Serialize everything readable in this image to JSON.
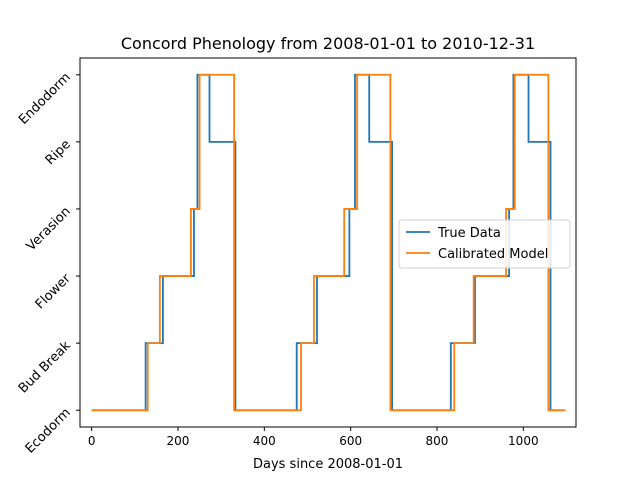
{
  "chart_data": {
    "type": "line",
    "title": "Concord Phenology from 2008-01-01 to 2010-12-31",
    "xlabel": "Days since 2008-01-01",
    "ylabel": "",
    "xlim": [
      -27,
      1122
    ],
    "ylim": [
      -0.25,
      5.25
    ],
    "xticks": [
      0,
      200,
      400,
      600,
      800,
      1000
    ],
    "yticks": [
      0,
      1,
      2,
      3,
      4,
      5
    ],
    "ytick_labels": [
      "Ecodorm",
      "Bud Break",
      "Flower",
      "Verasion",
      "Ripe",
      "Endodorm"
    ],
    "legend_position": "center-right",
    "series": [
      {
        "name": "True Data",
        "color": "#1f77b4",
        "points": [
          [
            0,
            0
          ],
          [
            125,
            0
          ],
          [
            125,
            1
          ],
          [
            165,
            1
          ],
          [
            165,
            2
          ],
          [
            237,
            2
          ],
          [
            237,
            3
          ],
          [
            245,
            3
          ],
          [
            245,
            5
          ],
          [
            273,
            5
          ],
          [
            273,
            4
          ],
          [
            333,
            4
          ],
          [
            333,
            0
          ],
          [
            475,
            0
          ],
          [
            475,
            1
          ],
          [
            522,
            1
          ],
          [
            522,
            2
          ],
          [
            597,
            2
          ],
          [
            597,
            3
          ],
          [
            610,
            3
          ],
          [
            610,
            5
          ],
          [
            643,
            5
          ],
          [
            643,
            4
          ],
          [
            696,
            4
          ],
          [
            696,
            0
          ],
          [
            832,
            0
          ],
          [
            832,
            1
          ],
          [
            888,
            1
          ],
          [
            888,
            2
          ],
          [
            967,
            2
          ],
          [
            967,
            3
          ],
          [
            977,
            3
          ],
          [
            977,
            5
          ],
          [
            1012,
            5
          ],
          [
            1012,
            4
          ],
          [
            1063,
            4
          ],
          [
            1063,
            0
          ],
          [
            1095,
            0
          ]
        ]
      },
      {
        "name": "Calibrated Model",
        "color": "#ff7f0e",
        "points": [
          [
            0,
            0
          ],
          [
            130,
            0
          ],
          [
            130,
            1
          ],
          [
            158,
            1
          ],
          [
            158,
            2
          ],
          [
            230,
            2
          ],
          [
            230,
            3
          ],
          [
            250,
            3
          ],
          [
            250,
            5
          ],
          [
            330,
            5
          ],
          [
            330,
            0
          ],
          [
            485,
            0
          ],
          [
            485,
            1
          ],
          [
            515,
            1
          ],
          [
            515,
            2
          ],
          [
            585,
            2
          ],
          [
            585,
            3
          ],
          [
            615,
            3
          ],
          [
            615,
            5
          ],
          [
            692,
            5
          ],
          [
            692,
            0
          ],
          [
            840,
            0
          ],
          [
            840,
            1
          ],
          [
            885,
            1
          ],
          [
            885,
            2
          ],
          [
            960,
            2
          ],
          [
            960,
            3
          ],
          [
            980,
            3
          ],
          [
            980,
            5
          ],
          [
            1058,
            5
          ],
          [
            1058,
            0
          ],
          [
            1098,
            0
          ]
        ]
      }
    ]
  }
}
